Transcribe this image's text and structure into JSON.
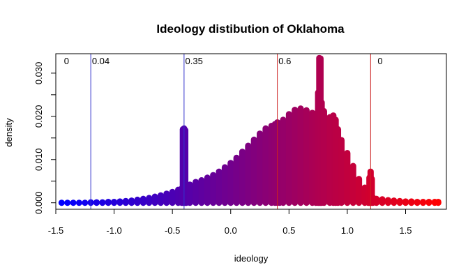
{
  "chart_data": {
    "type": "scatter",
    "title": "Ideology distibution of Oklahoma",
    "xlabel": "ideology",
    "ylabel": "density",
    "xlim": [
      -1.5,
      1.85
    ],
    "ylim": [
      -0.0015,
      0.0345
    ],
    "xticks": [
      -1.5,
      -1.0,
      -0.5,
      0.0,
      0.5,
      1.0,
      1.5
    ],
    "xtick_labels": [
      "-1.5",
      "-1.0",
      "-0.5",
      "0.0",
      "0.5",
      "1.0",
      "1.5"
    ],
    "yticks": [
      0.0,
      0.01,
      0.02,
      0.03
    ],
    "ytick_labels": [
      "0.000",
      "0.010",
      "0.020",
      "0.030"
    ],
    "grid": false,
    "color_gradient": [
      "#0000ff",
      "#ff0000"
    ],
    "vlines": [
      {
        "x": -1.2,
        "color": "#3333cc"
      },
      {
        "x": -0.4,
        "color": "#3333cc"
      },
      {
        "x": 0.4,
        "color": "#cc2222"
      },
      {
        "x": 1.2,
        "color": "#cc2222"
      }
    ],
    "region_labels": [
      {
        "text": "0",
        "x": -1.43
      },
      {
        "text": "0.04",
        "x": -1.19
      },
      {
        "text": "0.35",
        "x": -0.39
      },
      {
        "text": "0.6",
        "x": 0.41
      },
      {
        "text": "0",
        "x": 1.26
      }
    ],
    "x": [
      -1.45,
      -1.4,
      -1.35,
      -1.3,
      -1.25,
      -1.2,
      -1.15,
      -1.1,
      -1.05,
      -1.0,
      -0.95,
      -0.9,
      -0.85,
      -0.8,
      -0.75,
      -0.7,
      -0.65,
      -0.6,
      -0.55,
      -0.5,
      -0.45,
      -0.42,
      -0.41,
      -0.4,
      -0.39,
      -0.38,
      -0.35,
      -0.3,
      -0.25,
      -0.2,
      -0.15,
      -0.1,
      -0.05,
      0.0,
      0.05,
      0.1,
      0.15,
      0.2,
      0.25,
      0.3,
      0.35,
      0.38,
      0.4,
      0.42,
      0.45,
      0.5,
      0.55,
      0.6,
      0.65,
      0.7,
      0.73,
      0.75,
      0.76,
      0.77,
      0.78,
      0.8,
      0.85,
      0.88,
      0.9,
      0.92,
      0.95,
      1.0,
      1.05,
      1.1,
      1.15,
      1.18,
      1.19,
      1.2,
      1.21,
      1.22,
      1.25,
      1.3,
      1.35,
      1.4,
      1.45,
      1.5,
      1.55,
      1.6,
      1.65,
      1.7,
      1.75,
      1.78
    ],
    "values": [
      0.0,
      0.0,
      0.0,
      0.0,
      0.0,
      0.0001,
      0.0001,
      0.0001,
      0.0002,
      0.0002,
      0.0003,
      0.0004,
      0.0005,
      0.0007,
      0.0009,
      0.0011,
      0.0014,
      0.0017,
      0.0021,
      0.0025,
      0.003,
      0.0033,
      0.017,
      0.0172,
      0.0168,
      0.0038,
      0.0042,
      0.0048,
      0.0052,
      0.0058,
      0.0064,
      0.0072,
      0.0082,
      0.0092,
      0.0104,
      0.0118,
      0.0132,
      0.0146,
      0.016,
      0.0172,
      0.0178,
      0.0182,
      0.0186,
      0.0184,
      0.0192,
      0.0205,
      0.0215,
      0.0218,
      0.0214,
      0.0208,
      0.0206,
      0.0255,
      0.0335,
      0.0334,
      0.0232,
      0.0212,
      0.0198,
      0.0202,
      0.0192,
      0.017,
      0.0145,
      0.0115,
      0.0085,
      0.0055,
      0.0035,
      0.0022,
      0.0058,
      0.0072,
      0.0055,
      0.0012,
      0.0009,
      0.0008,
      0.0006,
      0.0005,
      0.0004,
      0.0003,
      0.0003,
      0.0002,
      0.0002,
      0.0002,
      0.0002,
      0.0002
    ]
  }
}
